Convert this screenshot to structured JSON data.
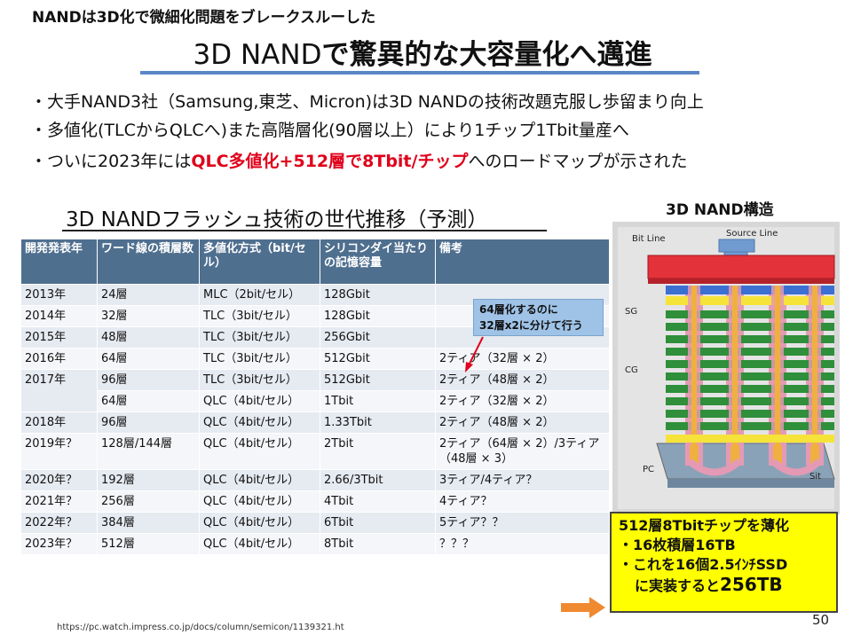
{
  "header": {
    "caption": "NANDは3D化で微細化問題をブレークスルーした",
    "title_prefix": "3D NAND",
    "title_suffix": "で驚異的な大容量化へ邁進"
  },
  "bullets": [
    {
      "text": "・大手NAND3社（Samsung,東芝、Micron)は3D NANDの技術改題克服し歩留まり向上"
    },
    {
      "text": "・多値化(TLCからQLCへ)また高階層化(90層以上）により1チップ1Tbit量産へ"
    },
    {
      "pre": "・ついに2023年には",
      "highlight": "QLC多値化+512層で8Tbit/チップ",
      "post": "へのロードマップが示された"
    }
  ],
  "table": {
    "title": "3D NANDフラッシュ技術の世代推移（予測）",
    "headers": [
      "開発発表年",
      "ワード線の積層数",
      "多値化方式（bit/セル）",
      "シリコンダイ当たりの記憶容量",
      "備考"
    ],
    "rows": [
      [
        "2013年",
        "24層",
        "MLC（2bit/セル）",
        "128Gbit",
        ""
      ],
      [
        "2014年",
        "32層",
        "TLC（3bit/セル）",
        "128Gbit",
        ""
      ],
      [
        "2015年",
        "48層",
        "TLC（3bit/セル）",
        "256Gbit",
        ""
      ],
      [
        "2016年",
        "64層",
        "TLC（3bit/セル）",
        "512Gbit",
        "2ティア（32層 × 2）"
      ],
      [
        "2017年",
        "96層",
        "TLC（3bit/セル）",
        "512Gbit",
        "2ティア（48層 × 2）"
      ],
      [
        "",
        "64層",
        "QLC（4bit/セル）",
        "1Tbit",
        "2ティア（32層 × 2）"
      ],
      [
        "2018年",
        "96層",
        "QLC（4bit/セル）",
        "1.33Tbit",
        "2ティア（48層 × 2）"
      ],
      [
        "2019年？",
        "128層/144層",
        "QLC（4bit/セル）",
        "2Tbit",
        "2ティア（64層 × 2）/3ティア（48層 × 3）"
      ],
      [
        "2020年？",
        "192層",
        "QLC（4bit/セル）",
        "2.66/3Tbit",
        "3ティア/4ティア？"
      ],
      [
        "2021年？",
        "256層",
        "QLC（4bit/セル）",
        "4Tbit",
        "4ティア？"
      ],
      [
        "2022年？",
        "384層",
        "QLC（4bit/セル）",
        "6Tbit",
        "5ティア？？"
      ],
      [
        "2023年？",
        "512層",
        "QLC（4bit/セル）",
        "8Tbit",
        "？？？"
      ]
    ]
  },
  "callout": {
    "line1": "64層化するのに",
    "line2": "32層x2に分けて行う"
  },
  "diagram": {
    "caption": "3D NAND構造",
    "labels": {
      "bit_line": "Bit Line",
      "source_line": "Source Line",
      "sg": "SG",
      "cg": "CG",
      "pc": "PC",
      "sit": "Sit"
    }
  },
  "yellow_box": {
    "line1": "512層8Tbitチップを薄化",
    "line2": "・16枚積層16TB",
    "line3": "・これを16個2.5ｲﾝﾁSSD",
    "line4_pre": "に実装すると",
    "line4_big": "256TB"
  },
  "footer": {
    "source": "https://pc.watch.impress.co.jp/docs/column/semicon/1139321.ht",
    "page": "50"
  },
  "colors": {
    "title_rule": "#5b86c6",
    "table_header": "#4f6f8f",
    "highlight_red": "#e0001a",
    "callout": "#9fc3e7",
    "yellow": "#ffff00",
    "arrow": "#f08a30"
  }
}
